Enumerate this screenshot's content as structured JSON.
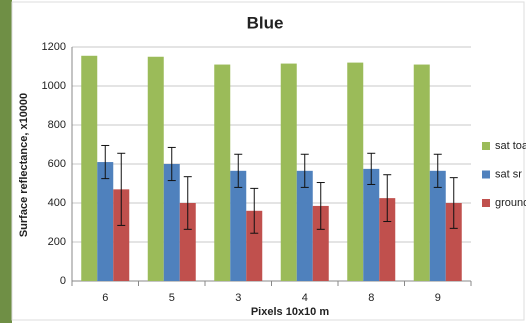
{
  "chart_data": {
    "type": "bar",
    "title": "Blue",
    "y_label": "Surface reflectance, x10000",
    "x_label": "Pixels 10x10 m",
    "categories": [
      "6",
      "5",
      "3",
      "4",
      "8",
      "9"
    ],
    "series": [
      {
        "name": "sat toa",
        "color": "#9bbb59",
        "values": [
          1155,
          1150,
          1110,
          1115,
          1120,
          1110
        ]
      },
      {
        "name": "sat sr",
        "color": "#4f81bd",
        "values": [
          610,
          600,
          565,
          565,
          575,
          565
        ],
        "errors": [
          85,
          85,
          85,
          85,
          80,
          85
        ]
      },
      {
        "name": "ground",
        "color": "#c0504d",
        "values": [
          470,
          400,
          360,
          385,
          425,
          400
        ],
        "errors": [
          185,
          135,
          115,
          120,
          120,
          130
        ]
      }
    ],
    "ylim": [
      0,
      1200
    ],
    "yticks": [
      0,
      200,
      400,
      600,
      800,
      1000,
      1200
    ],
    "grid": true,
    "legend": "right"
  }
}
